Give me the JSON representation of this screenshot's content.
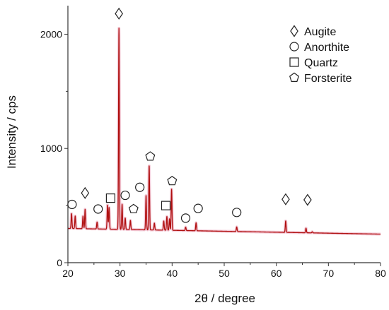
{
  "chart_data": {
    "type": "line",
    "title": "",
    "xlabel": "2θ / degree",
    "ylabel": "Intensity / cps",
    "xlim": [
      20,
      80
    ],
    "ylim": [
      0,
      2250
    ],
    "x_ticks": [
      20,
      30,
      40,
      50,
      60,
      70,
      80
    ],
    "y_ticks": [
      0,
      1000,
      2000
    ],
    "x_tick_labels": [
      "20",
      "30",
      "40",
      "50",
      "60",
      "70",
      "80"
    ],
    "y_tick_labels": [
      "0",
      "1000",
      "2000"
    ],
    "grid": false,
    "legend_position": "top-right",
    "colors": {
      "line": "#b01010",
      "fill": "#f3c9d6",
      "axis": "#333333",
      "marker": "#222222"
    },
    "baseline": 300,
    "series": [
      {
        "peaks": [
          {
            "x": 20.7,
            "y": 430
          },
          {
            "x": 21.4,
            "y": 410
          },
          {
            "x": 22.9,
            "y": 410
          },
          {
            "x": 23.3,
            "y": 470
          },
          {
            "x": 25.6,
            "y": 360
          },
          {
            "x": 27.6,
            "y": 510
          },
          {
            "x": 27.9,
            "y": 490
          },
          {
            "x": 29.8,
            "y": 2060
          },
          {
            "x": 30.4,
            "y": 520
          },
          {
            "x": 31.0,
            "y": 400
          },
          {
            "x": 32.0,
            "y": 380
          },
          {
            "x": 35.0,
            "y": 600
          },
          {
            "x": 35.6,
            "y": 860
          },
          {
            "x": 36.6,
            "y": 360
          },
          {
            "x": 38.4,
            "y": 380
          },
          {
            "x": 39.0,
            "y": 420
          },
          {
            "x": 39.5,
            "y": 400
          },
          {
            "x": 39.9,
            "y": 660
          },
          {
            "x": 42.6,
            "y": 330
          },
          {
            "x": 44.6,
            "y": 370
          },
          {
            "x": 52.4,
            "y": 340
          },
          {
            "x": 61.8,
            "y": 400
          },
          {
            "x": 65.7,
            "y": 340
          },
          {
            "x": 66.9,
            "y": 310
          }
        ]
      }
    ],
    "phase_markers": [
      {
        "phase": "Augite",
        "shape": "diamond",
        "positions": [
          [
            23.3,
            610
          ],
          [
            29.8,
            2180
          ],
          [
            61.8,
            555
          ],
          [
            66.0,
            550
          ]
        ]
      },
      {
        "phase": "Anorthite",
        "shape": "circle",
        "positions": [
          [
            20.8,
            510
          ],
          [
            25.8,
            470
          ],
          [
            31.0,
            590
          ],
          [
            33.8,
            660
          ],
          [
            42.6,
            390
          ],
          [
            45.0,
            475
          ],
          [
            52.4,
            440
          ]
        ]
      },
      {
        "phase": "Quartz",
        "shape": "square",
        "positions": [
          [
            28.2,
            565
          ],
          [
            38.8,
            500
          ]
        ]
      },
      {
        "phase": "Forsterite",
        "shape": "pentagon",
        "positions": [
          [
            32.6,
            470
          ],
          [
            35.8,
            930
          ],
          [
            40.0,
            715
          ]
        ]
      }
    ],
    "legend": [
      {
        "shape": "diamond",
        "label": "Augite"
      },
      {
        "shape": "circle",
        "label": "Anorthite"
      },
      {
        "shape": "square",
        "label": "Quartz"
      },
      {
        "shape": "pentagon",
        "label": "Forsterite"
      }
    ]
  }
}
